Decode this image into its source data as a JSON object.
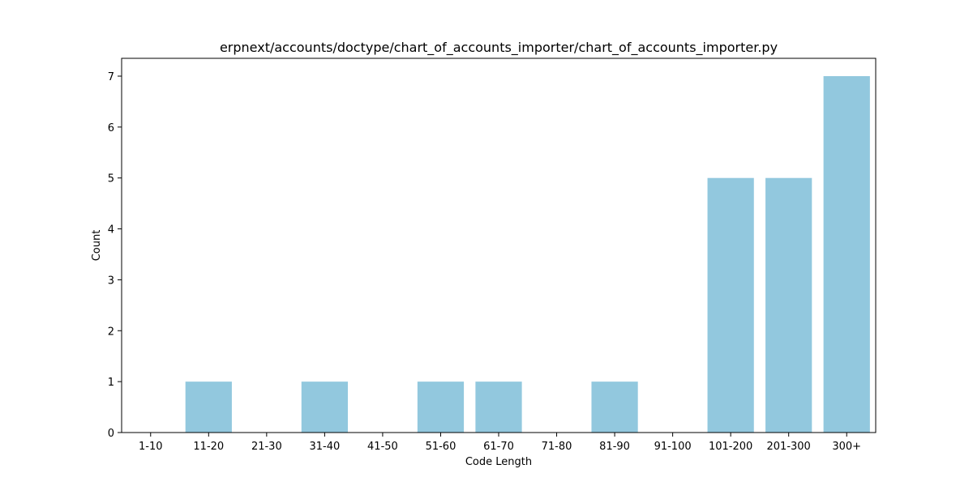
{
  "chart_data": {
    "type": "bar",
    "title": "erpnext/accounts/doctype/chart_of_accounts_importer/chart_of_accounts_importer.py",
    "xlabel": "Code Length",
    "ylabel": "Count",
    "categories": [
      "1-10",
      "11-20",
      "21-30",
      "31-40",
      "41-50",
      "51-60",
      "61-70",
      "71-80",
      "81-90",
      "91-100",
      "101-200",
      "201-300",
      "300+"
    ],
    "values": [
      0,
      1,
      0,
      1,
      0,
      1,
      1,
      0,
      1,
      0,
      5,
      5,
      7
    ],
    "ylim": [
      0,
      7.35
    ],
    "yticks": [
      0,
      1,
      2,
      3,
      4,
      5,
      6,
      7
    ],
    "grid": false,
    "bar_color": "#92c8de"
  }
}
